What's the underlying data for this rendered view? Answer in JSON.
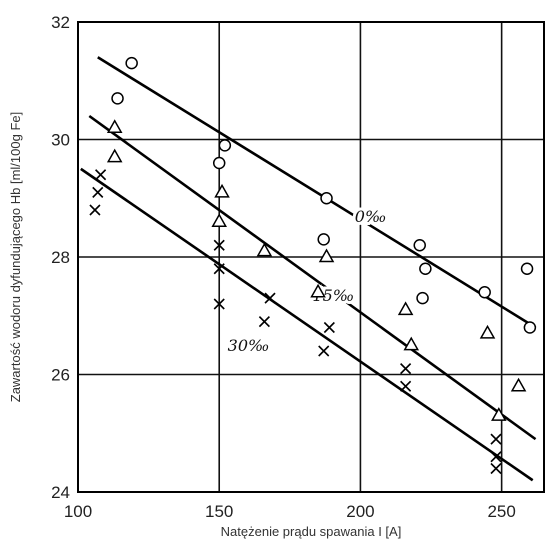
{
  "chart_data": {
    "type": "scatter",
    "title": "",
    "xlabel": "Natężenie prądu spawania I [A]",
    "ylabel": "Zawartość wodoru dyfundującego Hb [ml/100g Fe]",
    "xlim": [
      100,
      265
    ],
    "ylim": [
      24,
      32
    ],
    "grid": true,
    "x_ticks": [
      100,
      150,
      200,
      250
    ],
    "y_ticks": [
      24,
      26,
      28,
      30,
      32
    ],
    "series": [
      {
        "name": "0‰",
        "marker": "circle",
        "points": [
          [
            119,
            31.3
          ],
          [
            114,
            30.7
          ],
          [
            152,
            29.9
          ],
          [
            150,
            29.6
          ],
          [
            188,
            29.0
          ],
          [
            187,
            28.3
          ],
          [
            221,
            28.2
          ],
          [
            223,
            27.8
          ],
          [
            222,
            27.3
          ],
          [
            244,
            27.4
          ],
          [
            259,
            27.8
          ],
          [
            260,
            26.8
          ]
        ],
        "fit": [
          [
            107,
            31.4
          ],
          [
            262,
            26.8
          ]
        ]
      },
      {
        "name": "15‰",
        "marker": "triangle",
        "points": [
          [
            113,
            30.2
          ],
          [
            113,
            29.7
          ],
          [
            151,
            29.1
          ],
          [
            150,
            28.6
          ],
          [
            166,
            28.1
          ],
          [
            188,
            28.0
          ],
          [
            185,
            27.4
          ],
          [
            216,
            27.1
          ],
          [
            218,
            26.5
          ],
          [
            245,
            26.7
          ],
          [
            256,
            25.8
          ],
          [
            249,
            25.3
          ]
        ],
        "fit": [
          [
            104,
            30.4
          ],
          [
            262,
            24.9
          ]
        ]
      },
      {
        "name": "30‰",
        "marker": "cross",
        "points": [
          [
            108,
            29.4
          ],
          [
            107,
            29.1
          ],
          [
            106,
            28.8
          ],
          [
            150,
            28.2
          ],
          [
            150,
            27.8
          ],
          [
            150,
            27.2
          ],
          [
            168,
            27.3
          ],
          [
            166,
            26.9
          ],
          [
            189,
            26.8
          ],
          [
            187,
            26.4
          ],
          [
            216,
            26.1
          ],
          [
            216,
            25.8
          ],
          [
            248,
            24.9
          ],
          [
            248,
            24.6
          ],
          [
            248,
            24.4
          ]
        ],
        "fit": [
          [
            101,
            29.5
          ],
          [
            261,
            24.2
          ]
        ]
      }
    ]
  }
}
